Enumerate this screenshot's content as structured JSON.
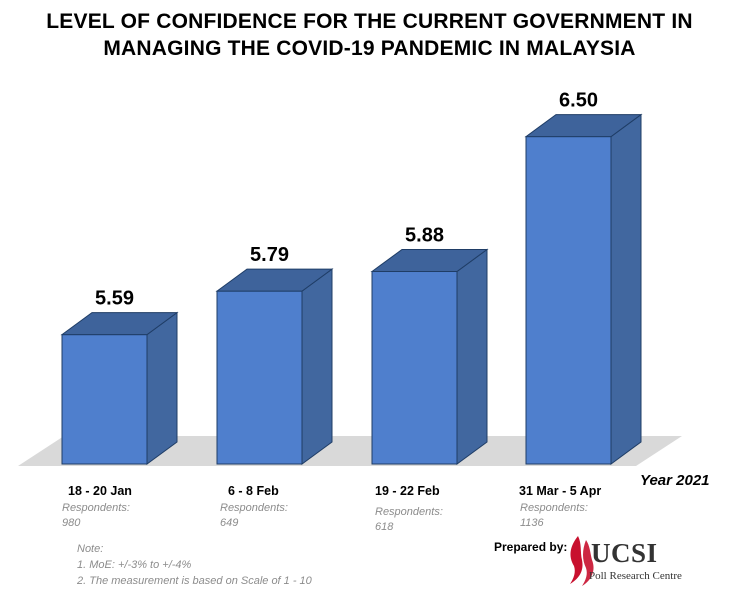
{
  "chart_data": {
    "type": "bar",
    "title": "LEVEL OF CONFIDENCE FOR THE CURRENT GOVERNMENT IN MANAGING THE COVID-19 PANDEMIC IN MALAYSIA",
    "title_lines": [
      "LEVEL OF CONFIDENCE FOR THE CURRENT GOVERNMENT IN",
      "MANAGING THE COVID-19 PANDEMIC IN MALAYSIA"
    ],
    "categories": [
      "18 - 20 Jan",
      "6 - 8 Feb",
      "19 - 22 Feb",
      "31 Mar - 5 Apr"
    ],
    "values": [
      5.59,
      5.79,
      5.88,
      6.5
    ],
    "value_labels": [
      "5.59",
      "5.79",
      "5.88",
      "6.50"
    ],
    "respondents_label": "Respondents:",
    "respondents": [
      "980",
      "649",
      "618",
      "1136"
    ],
    "xlabel": "Year 2021",
    "ylabel": "",
    "style": "3d-column",
    "grid": false,
    "bar_color": "#4f7fcd"
  },
  "notes": {
    "heading": "Note:",
    "lines": [
      "1. MoE: +/-3% to +/-4%",
      "2. The measurement is based on Scale of 1 - 10"
    ]
  },
  "footer": {
    "prepared_by": "Prepared by:",
    "logo_text": "UCSI",
    "logo_subtext": "Poll Research Centre",
    "logo_color": "#c8102e"
  }
}
